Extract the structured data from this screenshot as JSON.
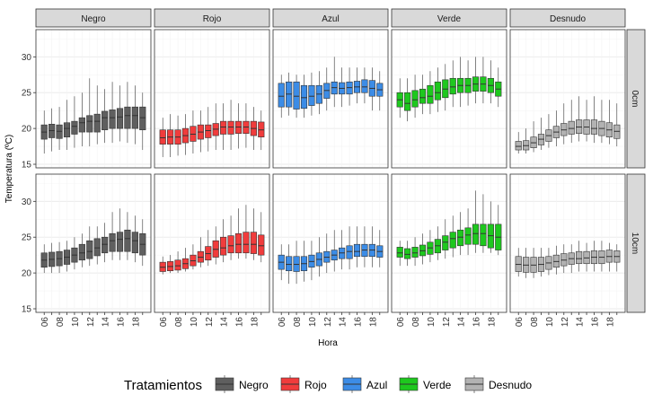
{
  "chart_data": {
    "type": "box",
    "title": "",
    "xlabel": "Hora",
    "ylabel": "Temperatura (ºC)",
    "ylim": [
      14.5,
      33.8
    ],
    "y_ticks": [
      15,
      20,
      25,
      30
    ],
    "x_hours": [
      "06",
      "07",
      "08",
      "09",
      "10",
      "11",
      "12",
      "13",
      "14",
      "15",
      "16",
      "17",
      "18",
      "19"
    ],
    "x_tick_labels": [
      "06",
      "08",
      "10",
      "12",
      "14",
      "16",
      "18"
    ],
    "columns": [
      {
        "name": "Negro",
        "color": "#5f5f5f"
      },
      {
        "name": "Rojo",
        "color": "#f03c3c"
      },
      {
        "name": "Azul",
        "color": "#3c8ce6"
      },
      {
        "name": "Verde",
        "color": "#1ec81e"
      },
      {
        "name": "Desnudo",
        "color": "#b2b2b2"
      }
    ],
    "rows": [
      "0cm",
      "10cm"
    ],
    "legend": {
      "title": "Tratamientos",
      "position": "bottom"
    },
    "grid": true,
    "boxes": {
      "0cm": {
        "Negro": [
          [
            16.5,
            18.5,
            19.5,
            20.5,
            22.5
          ],
          [
            16.8,
            18.7,
            19.7,
            20.6,
            22.8
          ],
          [
            17,
            18.6,
            19.6,
            20.5,
            23
          ],
          [
            17,
            18.8,
            20,
            20.8,
            24
          ],
          [
            17.3,
            19.2,
            20.3,
            21,
            24.5
          ],
          [
            17.5,
            19.5,
            20.8,
            21.5,
            25
          ],
          [
            17.5,
            19.5,
            21,
            21.8,
            27
          ],
          [
            17.8,
            19.5,
            21,
            22,
            26
          ],
          [
            18,
            19.8,
            21.5,
            22.4,
            25.5
          ],
          [
            18,
            20,
            21.5,
            22.6,
            26.5
          ],
          [
            18.2,
            20,
            21.6,
            22.8,
            26
          ],
          [
            18,
            20,
            21.8,
            23,
            26.5
          ],
          [
            17.8,
            20,
            21.8,
            23,
            26
          ],
          [
            17,
            19.8,
            21.5,
            23,
            25
          ]
        ],
        "Rojo": [
          [
            16,
            17.8,
            18.7,
            19.8,
            21.5
          ],
          [
            16,
            17.8,
            18.8,
            19.8,
            22
          ],
          [
            16.2,
            17.8,
            18.8,
            19.8,
            21.8
          ],
          [
            16.3,
            18,
            19,
            20,
            22
          ],
          [
            16.5,
            18.2,
            19.2,
            20.3,
            22.5
          ],
          [
            16.7,
            18.5,
            19.5,
            20.5,
            22.5
          ],
          [
            16.8,
            18.7,
            19.7,
            20.5,
            23
          ],
          [
            17,
            19,
            19.9,
            20.7,
            23.5
          ],
          [
            17,
            19.2,
            20.2,
            21,
            23.5
          ],
          [
            17,
            19.2,
            20.2,
            21,
            24
          ],
          [
            17.2,
            19.3,
            20.2,
            21,
            23.5
          ],
          [
            17.3,
            19.3,
            20.2,
            21,
            23.5
          ],
          [
            17,
            19,
            20,
            21,
            23
          ],
          [
            17,
            18.8,
            19.8,
            20.9,
            22.5
          ]
        ],
        "Azul": [
          [
            21.5,
            23,
            24.5,
            26.3,
            27.5
          ],
          [
            21.8,
            23,
            24.8,
            26.5,
            27.8
          ],
          [
            21.5,
            22.7,
            24.5,
            26.5,
            27.5
          ],
          [
            21.5,
            22.8,
            24.3,
            26,
            27.5
          ],
          [
            21.8,
            23.2,
            24.5,
            26,
            27.8
          ],
          [
            22,
            23.5,
            24.8,
            26,
            28
          ],
          [
            22.5,
            24.2,
            25.3,
            26.3,
            28.5
          ],
          [
            23,
            24.8,
            25.7,
            26.5,
            30
          ],
          [
            23,
            24.8,
            25.6,
            26.4,
            28.5
          ],
          [
            23.2,
            24.8,
            25.7,
            26.5,
            28.5
          ],
          [
            23.5,
            25,
            25.8,
            26.6,
            28.5
          ],
          [
            23.5,
            25,
            25.8,
            26.8,
            28.5
          ],
          [
            22.5,
            24.5,
            25.6,
            26.7,
            28.5
          ],
          [
            22.5,
            24.5,
            25.4,
            26.3,
            28
          ]
        ],
        "Verde": [
          [
            21.5,
            23,
            24,
            25,
            27
          ],
          [
            21,
            22.5,
            23.5,
            25,
            27
          ],
          [
            21.5,
            23,
            24,
            25.3,
            27.5
          ],
          [
            22,
            23.5,
            24.3,
            25.5,
            27.5
          ],
          [
            22,
            23.5,
            24.5,
            26,
            28
          ],
          [
            22.3,
            24,
            25,
            26.5,
            28.5
          ],
          [
            22.5,
            24.3,
            25.5,
            26.8,
            29
          ],
          [
            23,
            24.8,
            25.8,
            27,
            29.5
          ],
          [
            23,
            25,
            26,
            27,
            30
          ],
          [
            23.2,
            25,
            26,
            27,
            29.5
          ],
          [
            23.5,
            25.2,
            26.2,
            27.2,
            30
          ],
          [
            23.5,
            25.2,
            26.2,
            27.2,
            30
          ],
          [
            23.5,
            25,
            26,
            27,
            29.5
          ],
          [
            23,
            24.5,
            25.5,
            26.5,
            28.5
          ]
        ],
        "Desnudo": [
          [
            16.5,
            17,
            17.5,
            18.2,
            19.5
          ],
          [
            16.5,
            17,
            17.6,
            18.3,
            20
          ],
          [
            16.7,
            17.3,
            18,
            18.8,
            21
          ],
          [
            17,
            17.7,
            18.5,
            19.2,
            21.5
          ],
          [
            17.3,
            18.2,
            19,
            19.8,
            22
          ],
          [
            17.5,
            18.7,
            19.5,
            20.3,
            22.5
          ],
          [
            17.8,
            19,
            19.8,
            20.7,
            23.5
          ],
          [
            18,
            19.2,
            20,
            21,
            24
          ],
          [
            18.2,
            19.3,
            20.2,
            21.2,
            24.5
          ],
          [
            18.2,
            19.2,
            20.2,
            21.2,
            24
          ],
          [
            18,
            19.2,
            20,
            21.2,
            24.5
          ],
          [
            18,
            19,
            20,
            21,
            24
          ],
          [
            17.8,
            18.8,
            19.8,
            20.8,
            24
          ],
          [
            17.5,
            18.6,
            19.6,
            20.5,
            23.5
          ]
        ]
      },
      "10cm": {
        "Negro": [
          [
            20,
            20.8,
            21.8,
            22.8,
            24
          ],
          [
            20,
            20.9,
            21.9,
            22.9,
            24.2
          ],
          [
            20,
            21,
            22,
            23,
            24.3
          ],
          [
            20.2,
            21.2,
            22.2,
            23.2,
            24.5
          ],
          [
            20.5,
            21.5,
            22.5,
            23.5,
            25
          ],
          [
            20.8,
            21.8,
            22.8,
            24,
            25.5
          ],
          [
            21,
            22,
            23,
            24.5,
            26.5
          ],
          [
            21.2,
            22.4,
            23.5,
            24.8,
            26.5
          ],
          [
            21.5,
            22.8,
            24,
            25,
            27
          ],
          [
            21.8,
            23,
            24.5,
            25.5,
            28.5
          ],
          [
            21.8,
            23,
            24.7,
            25.7,
            29
          ],
          [
            21.8,
            23,
            24.8,
            26,
            28.5
          ],
          [
            21.5,
            22.8,
            24.5,
            25.7,
            28
          ],
          [
            21,
            22.5,
            24,
            25.5,
            27.5
          ]
        ],
        "Rojo": [
          [
            19.8,
            20.2,
            20.8,
            21.5,
            22.3
          ],
          [
            20,
            20.3,
            20.9,
            21.6,
            22.5
          ],
          [
            20,
            20.4,
            21,
            21.8,
            23
          ],
          [
            20.2,
            20.6,
            21.3,
            22,
            23.5
          ],
          [
            20.5,
            21,
            21.7,
            22.5,
            24
          ],
          [
            20.8,
            21.5,
            22.2,
            23,
            25
          ],
          [
            21,
            21.8,
            22.7,
            23.7,
            26
          ],
          [
            21.2,
            22.2,
            23.3,
            24.5,
            26.5
          ],
          [
            21.5,
            22.5,
            23.5,
            25,
            27.5
          ],
          [
            21.8,
            22.8,
            23.8,
            25.2,
            28
          ],
          [
            22,
            22.8,
            24,
            25.5,
            29
          ],
          [
            22,
            22.8,
            24,
            25.7,
            29.5
          ],
          [
            21.8,
            22.7,
            24,
            25.7,
            29
          ],
          [
            21.5,
            22.5,
            23.8,
            25.3,
            28.5
          ]
        ],
        "Azul": [
          [
            19,
            20.5,
            21.5,
            22.5,
            24
          ],
          [
            18.5,
            20.3,
            21.2,
            22.3,
            24
          ],
          [
            18.5,
            20.2,
            21.2,
            22.3,
            24.5
          ],
          [
            18.8,
            20.3,
            21.3,
            22.3,
            24.5
          ],
          [
            19,
            20.8,
            21.6,
            22.5,
            24.5
          ],
          [
            19.5,
            21,
            21.9,
            22.8,
            25
          ],
          [
            20,
            21.5,
            22.2,
            23,
            25.5
          ],
          [
            20.2,
            21.8,
            22.5,
            23.2,
            26
          ],
          [
            20.5,
            22,
            22.8,
            23.5,
            26
          ],
          [
            20.5,
            22,
            23,
            23.8,
            26.5
          ],
          [
            20.8,
            22.3,
            23,
            24,
            26.5
          ],
          [
            20.8,
            22.3,
            23.2,
            24,
            26.5
          ],
          [
            20.8,
            22.3,
            23.2,
            24,
            26.5
          ],
          [
            20.8,
            22.2,
            23,
            23.8,
            26
          ]
        ],
        "Verde": [
          [
            21,
            22.2,
            22.8,
            23.6,
            24.5
          ],
          [
            21,
            22,
            22.6,
            23.4,
            24.5
          ],
          [
            21,
            22.2,
            22.8,
            23.6,
            25
          ],
          [
            21.2,
            22.4,
            23.1,
            23.9,
            25.5
          ],
          [
            21.5,
            22.6,
            23.5,
            24.3,
            26
          ],
          [
            21.8,
            22.8,
            23.8,
            24.7,
            26.5
          ],
          [
            22,
            23.2,
            24.3,
            25.2,
            27.5
          ],
          [
            22.2,
            23.5,
            24.8,
            25.7,
            28
          ],
          [
            22.5,
            23.8,
            25,
            26,
            28.5
          ],
          [
            22.5,
            24,
            25.3,
            26.3,
            29
          ],
          [
            22.8,
            24,
            25.5,
            26.8,
            31.5
          ],
          [
            22.8,
            23.8,
            25.5,
            26.8,
            31
          ],
          [
            22.8,
            23.5,
            25.2,
            26.8,
            30
          ],
          [
            22.5,
            23.2,
            25,
            26.8,
            29.5
          ]
        ],
        "Desnudo": [
          [
            19.5,
            20.2,
            21.2,
            22.3,
            23.5
          ],
          [
            19.3,
            20.1,
            21.1,
            22.2,
            23.5
          ],
          [
            19.3,
            20.1,
            21.1,
            22.2,
            23.5
          ],
          [
            19.5,
            20.2,
            21.2,
            22.2,
            23.5
          ],
          [
            19.7,
            20.5,
            21.4,
            22.3,
            23.5
          ],
          [
            19.8,
            20.8,
            21.6,
            22.5,
            23.8
          ],
          [
            20,
            21,
            21.8,
            22.7,
            24
          ],
          [
            20,
            21.2,
            22,
            22.8,
            24
          ],
          [
            20.2,
            21.3,
            22,
            23,
            24.5
          ],
          [
            20.2,
            21.3,
            22.1,
            23,
            24.2
          ],
          [
            20.2,
            21.3,
            22.2,
            23.1,
            24.5
          ],
          [
            20.2,
            21.3,
            22.2,
            23.1,
            24.5
          ],
          [
            20.2,
            21.5,
            22.3,
            23.2,
            24.2
          ],
          [
            20.2,
            21.5,
            22.3,
            23.1,
            24
          ]
        ]
      }
    }
  }
}
